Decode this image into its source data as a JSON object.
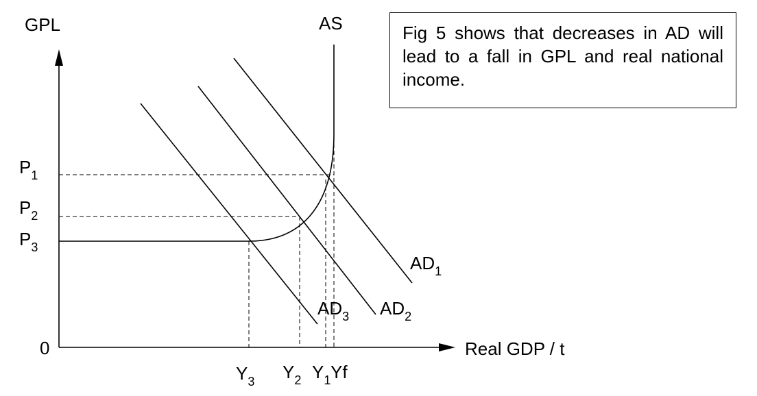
{
  "y_axis": {
    "title": "GPL",
    "ticks": [
      {
        "base": "P",
        "sub": "1"
      },
      {
        "base": "P",
        "sub": "2"
      },
      {
        "base": "P",
        "sub": "3"
      }
    ]
  },
  "x_axis": {
    "title": "Real GDP / t",
    "origin": "0",
    "ticks": [
      {
        "base": "Y",
        "sub": "3"
      },
      {
        "base": "Y",
        "sub": "2"
      },
      {
        "base": "Y",
        "sub": "1"
      },
      {
        "base": "Yf",
        "sub": ""
      }
    ]
  },
  "curves": {
    "as": {
      "label": "AS"
    },
    "ad1": {
      "base": "AD",
      "sub": "1"
    },
    "ad2": {
      "base": "AD",
      "sub": "2"
    },
    "ad3": {
      "base": "AD",
      "sub": "3"
    }
  },
  "note": "Fig 5 shows that decreases in AD will lead to a fall in GPL and real national income."
}
